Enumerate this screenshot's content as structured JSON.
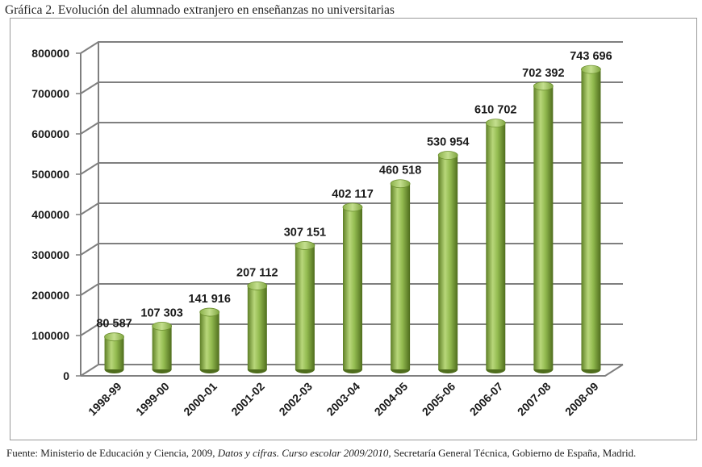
{
  "chart_data": {
    "type": "bar",
    "title": "Gráfica 2. Evolución del alumnado extranjero en enseñanzas no universitarias",
    "categories": [
      "1998-99",
      "1999-00",
      "2000-01",
      "2001-02",
      "2002-03",
      "2003-04",
      "2004-05",
      "2005-06",
      "2006-07",
      "2007-08",
      "2008-09"
    ],
    "values": [
      80587,
      107303,
      141916,
      207112,
      307151,
      402117,
      460518,
      530954,
      610702,
      702392,
      743696
    ],
    "data_labels": [
      "80 587",
      "107 303",
      "141 916",
      "207 112",
      "307 151",
      "402 117",
      "460 518",
      "530 954",
      "610 702",
      "702 392",
      "743 696"
    ],
    "yticks": [
      "0",
      "100000",
      "200000",
      "300000",
      "400000",
      "500000",
      "600000",
      "700000",
      "800000"
    ],
    "ylim": [
      0,
      800000
    ],
    "grid": true,
    "bar_color": "#8db54a",
    "grid_color": "#7f7f7f"
  },
  "source": {
    "prefix": "Fuente: Ministerio de Educación y Ciencia, 2009, ",
    "italic": "Datos y cifras. Curso escolar 2009/2010,",
    "suffix": " Secretaría General Técnica, Gobierno de España, Madrid."
  }
}
